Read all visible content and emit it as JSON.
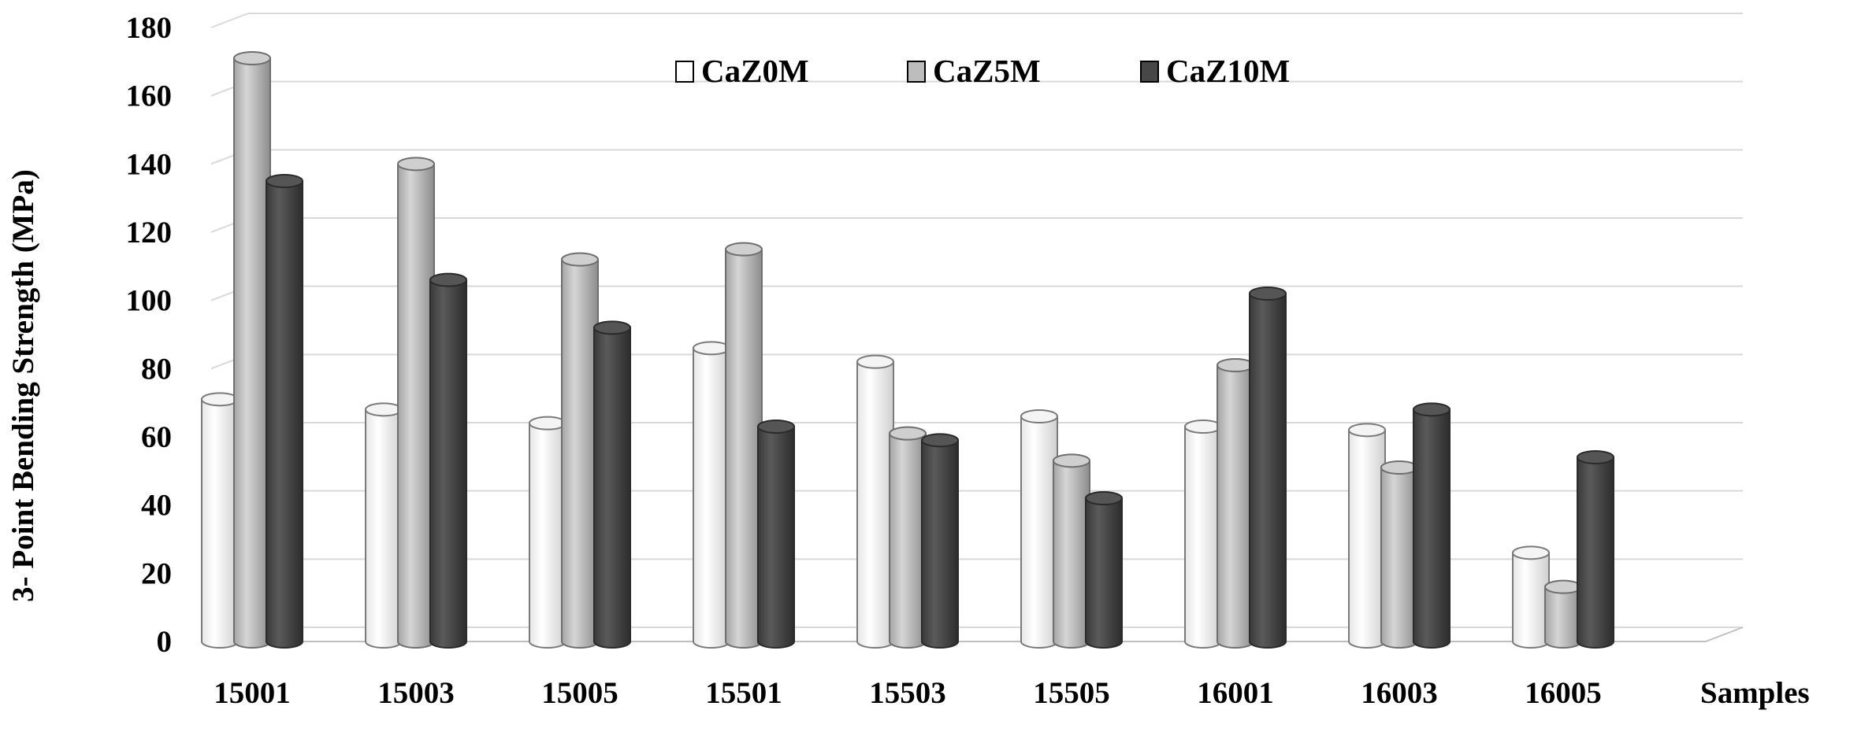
{
  "chart_data": {
    "type": "bar",
    "title": "",
    "xlabel": "Samples",
    "ylabel": "3- Point Bending Strength (MPa)",
    "ylim": [
      0,
      180
    ],
    "yticks": [
      0,
      20,
      40,
      60,
      80,
      100,
      120,
      140,
      160,
      180
    ],
    "categories": [
      "15001",
      "15003",
      "15005",
      "15501",
      "15503",
      "15505",
      "16001",
      "16003",
      "16005"
    ],
    "series": [
      {
        "name": "CaZ0M",
        "color": "#ffffff",
        "values": [
          71,
          68,
          64,
          86,
          82,
          66,
          63,
          62,
          26
        ]
      },
      {
        "name": "CaZ5M",
        "color": "#bdbdbd",
        "values": [
          171,
          140,
          112,
          115,
          61,
          53,
          81,
          51,
          16
        ]
      },
      {
        "name": "CaZ10M",
        "color": "#474747",
        "values": [
          135,
          106,
          92,
          63,
          59,
          42,
          102,
          68,
          54
        ]
      }
    ],
    "grid": true,
    "legend_position": "top-center",
    "style": "3d-cylinder"
  }
}
